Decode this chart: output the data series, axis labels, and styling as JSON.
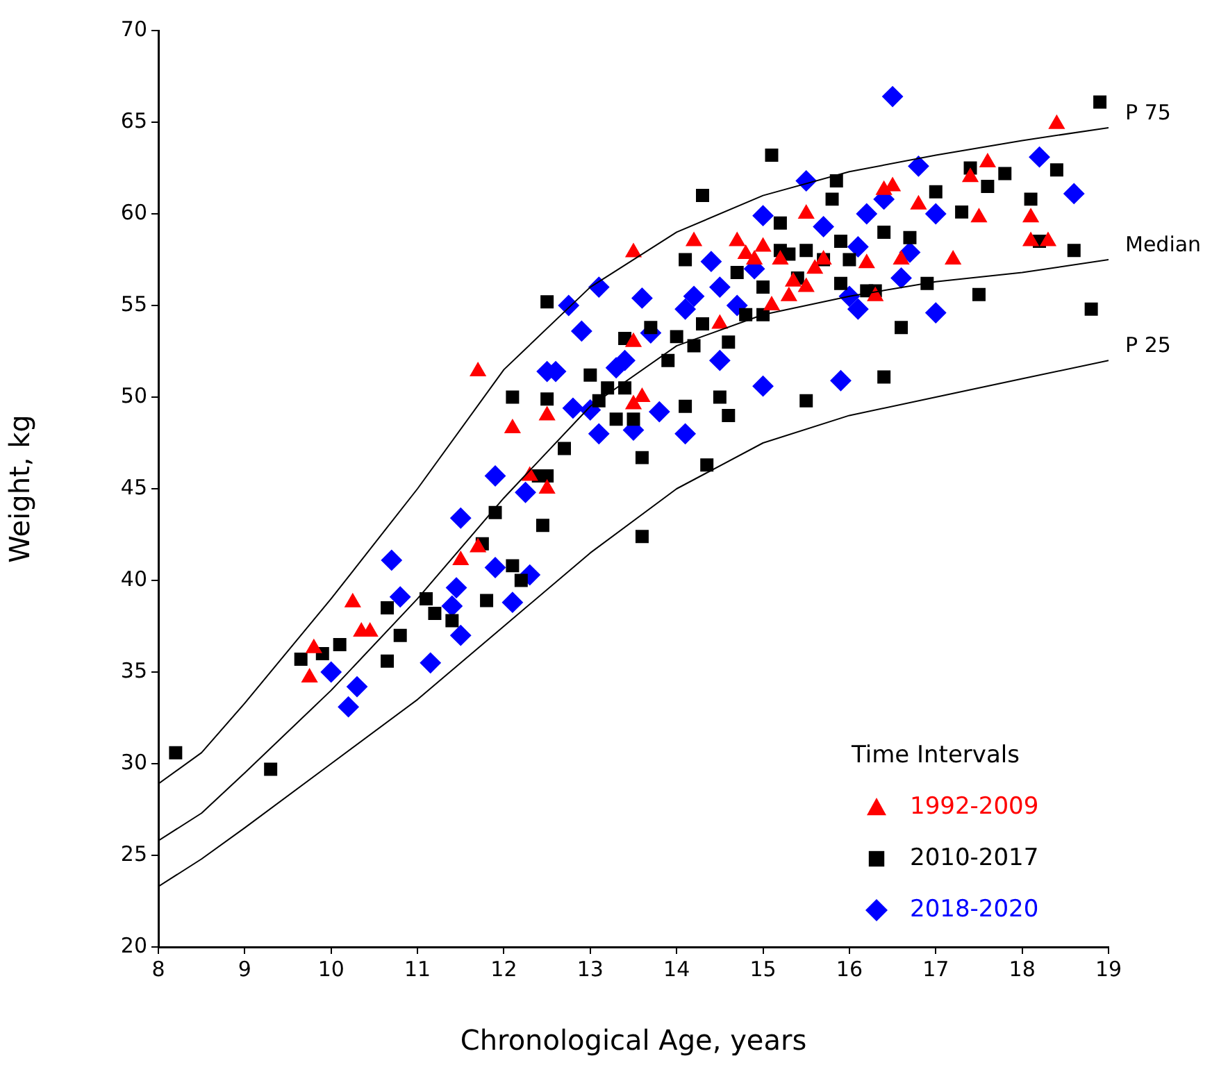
{
  "chart_data": {
    "type": "scatter",
    "xlabel": "Chronological Age, years",
    "ylabel": "Weight, kg",
    "legend_title": "Time Intervals",
    "legend": "bottom right",
    "grid": false,
    "xlim": [
      8,
      19
    ],
    "xticks": [
      8,
      9,
      10,
      11,
      12,
      13,
      14,
      15,
      16,
      17,
      18,
      19
    ],
    "ylim": [
      20,
      70
    ],
    "yticks": [
      20,
      25,
      30,
      35,
      40,
      45,
      50,
      55,
      60,
      65,
      70
    ],
    "series": [
      {
        "name": "P 75",
        "type": "line",
        "color": "#000000",
        "marker": "none",
        "line_style": "solid",
        "x": [
          8,
          8.5,
          9,
          10,
          11,
          12,
          13,
          14,
          15,
          16,
          17,
          18,
          19
        ],
        "values": [
          28.9,
          30.6,
          33.3,
          39,
          45,
          51.5,
          56,
          59,
          61,
          62.3,
          63.2,
          64,
          64.7
        ]
      },
      {
        "name": "Median",
        "type": "line",
        "color": "#000000",
        "marker": "none",
        "line_style": "solid",
        "x": [
          8,
          8.5,
          9,
          10,
          11,
          12,
          13,
          14,
          15,
          16,
          17,
          18,
          19
        ],
        "values": [
          25.8,
          27.3,
          29.5,
          34,
          39,
          44.5,
          49.5,
          52.8,
          54.5,
          55.5,
          56.3,
          56.8,
          57.5
        ]
      },
      {
        "name": "P 25",
        "type": "line",
        "color": "#000000",
        "marker": "none",
        "line_style": "solid",
        "x": [
          8,
          8.5,
          9,
          10,
          11,
          12,
          13,
          14,
          15,
          16,
          17,
          18,
          19
        ],
        "values": [
          23.3,
          24.8,
          26.5,
          30,
          33.5,
          37.5,
          41.5,
          45,
          47.5,
          49,
          50,
          51,
          52
        ]
      },
      {
        "name": "1992-2009",
        "color": "#ff0000",
        "marker": "triangle",
        "x": [
          9.75,
          9.8,
          10.25,
          10.35,
          10.45,
          11.5,
          11.7,
          11.7,
          12.1,
          12.3,
          12.5,
          12.5,
          13.5,
          13.5,
          13.6,
          13.5,
          14.2,
          14.5,
          14.7,
          14.8,
          14.9,
          15,
          15.1,
          15.2,
          15.3,
          15.35,
          15.5,
          15.5,
          15.6,
          15.7,
          16.2,
          16.3,
          16.4,
          16.5,
          16.6,
          16.8,
          17.2,
          17.4,
          17.5,
          17.6,
          18.1,
          18.1,
          18.3,
          18.4
        ],
        "values": [
          34.7,
          36.3,
          38.8,
          37.2,
          37.2,
          41.1,
          41.8,
          51.4,
          48.3,
          45.7,
          45,
          49,
          57.9,
          53,
          50,
          49.6,
          58.5,
          54,
          58.5,
          57.8,
          57.5,
          58.2,
          55,
          57.5,
          55.5,
          56.3,
          56,
          60,
          57,
          57.5,
          57.3,
          55.5,
          61.3,
          61.5,
          57.5,
          60.5,
          57.5,
          62,
          59.8,
          62.8,
          59.8,
          58.5,
          58.5,
          64.9
        ]
      },
      {
        "name": "2010-2017",
        "color": "#000000",
        "marker": "square",
        "x": [
          8.2,
          9.3,
          9.65,
          9.9,
          10.1,
          10.65,
          10.65,
          10.8,
          11.1,
          11.2,
          11.4,
          11.75,
          11.8,
          11.9,
          12.1,
          12.1,
          12.2,
          12.4,
          12.45,
          12.5,
          12.5,
          12.5,
          12.7,
          13,
          13.1,
          13.2,
          13.3,
          13.4,
          13.4,
          13.5,
          13.6,
          13.6,
          13.7,
          13.9,
          14,
          14.1,
          14.1,
          14.2,
          14.3,
          14.3,
          14.35,
          14.5,
          14.6,
          14.6,
          14.7,
          14.8,
          15,
          15,
          15.1,
          15.2,
          15.2,
          15.3,
          15.4,
          15.5,
          15.5,
          15.7,
          15.8,
          15.85,
          15.9,
          15.9,
          16,
          16.2,
          16.3,
          16.4,
          16.4,
          16.6,
          16.7,
          16.9,
          17,
          17.3,
          17.4,
          17.5,
          17.6,
          17.8,
          18.1,
          18.2,
          18.4,
          18.6,
          18.8,
          18.9
        ],
        "values": [
          30.6,
          29.7,
          35.7,
          36,
          36.5,
          35.6,
          38.5,
          37,
          39,
          38.2,
          37.8,
          42,
          38.9,
          43.7,
          40.8,
          50,
          40,
          45.7,
          43,
          55.2,
          49.9,
          45.7,
          47.2,
          51.2,
          49.8,
          50.5,
          48.8,
          53.2,
          50.5,
          48.8,
          46.7,
          42.4,
          53.8,
          52,
          53.3,
          57.5,
          49.5,
          52.8,
          54,
          61,
          46.3,
          50,
          49,
          53,
          56.8,
          54.5,
          56,
          54.5,
          63.2,
          58,
          59.5,
          57.8,
          56.5,
          58,
          49.8,
          57.5,
          60.8,
          61.8,
          58.5,
          56.2,
          57.5,
          55.8,
          55.8,
          59,
          51.1,
          53.8,
          58.7,
          56.2,
          61.2,
          60.1,
          62.5,
          55.6,
          61.5,
          62.2,
          60.8,
          58.5,
          62.4,
          58,
          54.8,
          66.1
        ]
      },
      {
        "name": "2018-2020",
        "color": "#0000ff",
        "marker": "diamond",
        "x": [
          10,
          10.2,
          10.3,
          10.7,
          10.8,
          11.05,
          11.15,
          11.4,
          11.45,
          11.5,
          11.5,
          11.9,
          11.9,
          12.1,
          12.25,
          12.3,
          12.5,
          12.6,
          12.75,
          12.8,
          12.9,
          13,
          13.1,
          13.1,
          13.3,
          13.4,
          13.5,
          13.6,
          13.7,
          13.8,
          13.9,
          14.1,
          14.1,
          14.2,
          14.4,
          14.5,
          14.5,
          14.7,
          14.9,
          15,
          15,
          15.2,
          15.3,
          15.5,
          15.7,
          15.9,
          16,
          16.1,
          16.1,
          16.2,
          16.4,
          16.5,
          16.6,
          16.7,
          16.8,
          17,
          17,
          18.2,
          18.6
        ],
        "values": [
          35,
          33.1,
          34.2,
          41.1,
          39.1,
          null,
          35.5,
          38.6,
          39.6,
          37,
          43.4,
          45.7,
          40.7,
          38.8,
          44.8,
          40.3,
          51.4,
          51.4,
          55,
          49.4,
          53.6,
          49.3,
          56,
          48,
          51.6,
          52,
          48.2,
          55.4,
          53.5,
          49.2,
          null,
          48,
          54.8,
          55.5,
          57.4,
          56,
          52,
          55,
          57,
          59.9,
          50.6,
          null,
          null,
          61.8,
          59.3,
          50.9,
          55.5,
          58.2,
          54.8,
          60,
          60.8,
          66.4,
          56.5,
          57.9,
          62.6,
          60,
          54.6,
          63.1,
          61.1
        ]
      }
    ]
  }
}
